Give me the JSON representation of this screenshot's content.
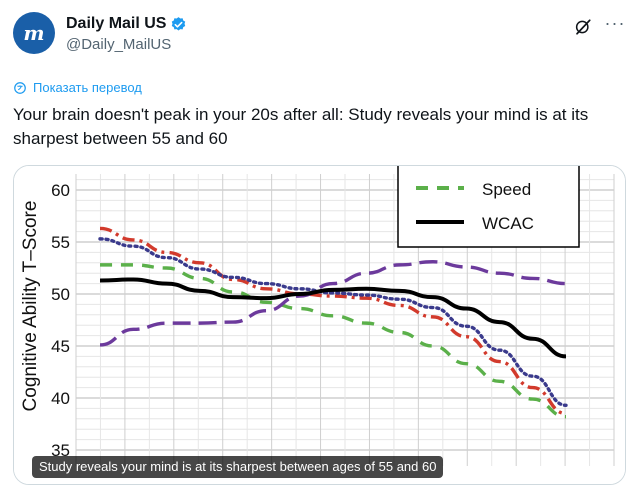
{
  "account": {
    "display_name": "Daily Mail US",
    "handle": "@Daily_MailUS",
    "avatar_letter": "m",
    "verified_color": "#1d9bf0",
    "avatar_color": "#1a5fa8"
  },
  "actions": {
    "grok_icon": "grok-icon",
    "more_icon": "more-icon"
  },
  "translate_label": "Показать перевод",
  "tweet_text": "Your brain doesn't peak in your 20s after all: Study reveals your mind is at its sharpest between 55 and 60",
  "media": {
    "caption": "Study reveals your mind is at its sharpest between ages of 55 and 60"
  },
  "chart_data": {
    "type": "line",
    "ylabel": "Cognitive Ability T–Score",
    "xlabel": "",
    "ylim": [
      35,
      62
    ],
    "yticks": [
      35,
      40,
      45,
      50,
      55,
      60
    ],
    "x": [
      1,
      2,
      3,
      4,
      5,
      6,
      7,
      8,
      9,
      10,
      11,
      12,
      13,
      14,
      15
    ],
    "grid": true,
    "legend_position": "top-right",
    "legend": [
      {
        "name": "Speed",
        "color": "#5bb04a",
        "dash": "dashed"
      },
      {
        "name": "WCAC",
        "color": "#000000",
        "dash": "solid"
      }
    ],
    "series": [
      {
        "name": "Speed",
        "color": "#5bb04a",
        "dash": "dashed",
        "values": [
          52.8,
          52.8,
          52.5,
          51.5,
          50.2,
          49.2,
          48.6,
          47.9,
          47.2,
          46.3,
          45.0,
          43.3,
          41.6,
          39.9,
          38.2
        ]
      },
      {
        "name": "WCAC",
        "color": "#000000",
        "dash": "solid",
        "values": [
          51.3,
          51.4,
          51.0,
          50.3,
          49.7,
          49.6,
          50.0,
          50.4,
          50.5,
          50.3,
          49.7,
          48.6,
          47.3,
          45.7,
          44.0
        ]
      },
      {
        "color": "#d23a2c",
        "dash": "dashdot",
        "values": [
          56.3,
          55.2,
          54.0,
          53.0,
          51.4,
          50.5,
          50.0,
          49.8,
          49.6,
          48.9,
          47.8,
          45.9,
          43.5,
          41.0,
          38.5
        ]
      },
      {
        "color": "#3a3a8c",
        "dash": "dotted",
        "values": [
          55.3,
          54.6,
          53.5,
          52.4,
          51.6,
          51.0,
          50.5,
          50.1,
          49.9,
          49.5,
          48.7,
          46.9,
          44.6,
          42.1,
          39.3
        ]
      },
      {
        "color": "#6c3a9c",
        "dash": "longdash",
        "values": [
          45.1,
          46.6,
          47.2,
          47.2,
          47.3,
          48.4,
          49.8,
          51.0,
          52.0,
          52.8,
          53.1,
          52.6,
          52.0,
          51.5,
          51.0
        ]
      }
    ]
  }
}
